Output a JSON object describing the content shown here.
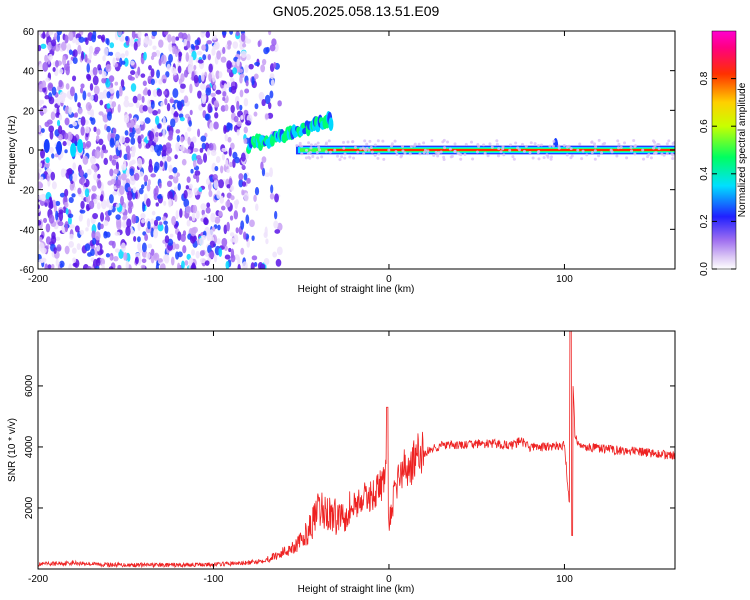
{
  "title": "GN05.2025.058.13.51.E09",
  "chart_data": [
    {
      "type": "heatmap",
      "xlabel": "Height of straight line (km)",
      "ylabel": "Frequency (Hz)",
      "xlim": [
        -200,
        163
      ],
      "ylim": [
        -60,
        60
      ],
      "xticks": [
        -200,
        -100,
        0,
        100
      ],
      "yticks": [
        -60,
        -40,
        -20,
        0,
        20,
        40,
        60
      ],
      "colorbar": {
        "label": "Normalized spectral amplitude",
        "range": [
          0,
          1
        ],
        "ticks": [
          "0.0",
          "0.2",
          "0.4",
          "0.6",
          "0.8"
        ],
        "colormap": "rainbow (white-violet-blue-cyan-green-yellow-red-magenta)"
      },
      "features": {
        "noise_region_x": [
          -200,
          -80
        ],
        "drifting_tone_x": [
          -80,
          -33
        ],
        "drifting_tone_freq": [
          2,
          15
        ],
        "carrier_start_x": -53,
        "carrier_freq": 0,
        "carrier_max_amplitude": 1.0,
        "spurious_spike_x": [
          -188,
          -178,
          95
        ]
      }
    },
    {
      "type": "line",
      "xlabel": "Height of straight line (km)",
      "ylabel": "SNR (10 * v/v)",
      "xlim": [
        -200,
        163
      ],
      "ylim": [
        0,
        7800
      ],
      "xticks": [
        -200,
        -100,
        0,
        100
      ],
      "yticks": [
        2000,
        4000,
        6000
      ],
      "color": "#ee2222",
      "series": [
        {
          "x": [
            -200,
            -180,
            -160,
            -140,
            -120,
            -100,
            -80,
            -70,
            -60,
            -50,
            -45,
            -40,
            -35,
            -30,
            -25,
            -20,
            -15,
            -10,
            -5,
            -1,
            0,
            5,
            10,
            15,
            20,
            25,
            30,
            40,
            50,
            60,
            70,
            75,
            80,
            90,
            100,
            103,
            104,
            106,
            110,
            120,
            130,
            140,
            150,
            163
          ],
          "y": [
            150,
            200,
            140,
            130,
            130,
            150,
            200,
            300,
            550,
            900,
            1350,
            1900,
            1850,
            1700,
            1900,
            2100,
            2300,
            2400,
            2700,
            3200,
            1500,
            3000,
            3300,
            3600,
            3800,
            3950,
            4050,
            4050,
            4100,
            4100,
            4050,
            4200,
            4000,
            4000,
            4050,
            2000,
            7700,
            4300,
            4000,
            3950,
            3900,
            3850,
            3800,
            3700
          ]
        }
      ]
    }
  ]
}
